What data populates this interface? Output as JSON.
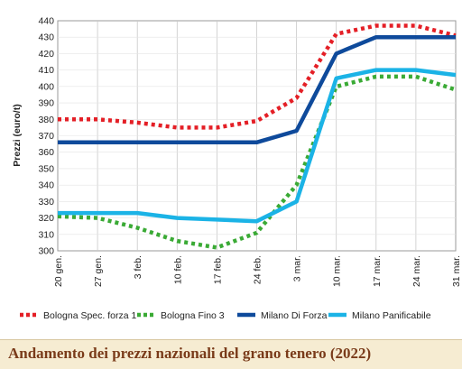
{
  "caption": "Andamento dei prezzi nazionali del grano tenero (2022)",
  "chart_data": {
    "type": "line",
    "title": "",
    "ylabel": "Prezzi (euro/t)",
    "xlabel": "",
    "categories": [
      "20 gen.",
      "27 gen.",
      "3 feb.",
      "10 feb.",
      "17 feb.",
      "24 feb.",
      "3 mar.",
      "10 mar.",
      "17 mar.",
      "24 mar.",
      "31 mar."
    ],
    "ylim": [
      300,
      440
    ],
    "yticks": [
      300,
      310,
      320,
      330,
      340,
      350,
      360,
      370,
      380,
      390,
      400,
      410,
      420,
      430,
      440
    ],
    "grid": true,
    "legend_position": "bottom",
    "series": [
      {
        "name": "Bologna Spec. forza 1",
        "color": "#e41f26",
        "style": "dotted",
        "values": [
          380,
          380,
          378,
          375,
          375,
          379,
          393,
          432,
          437,
          437,
          431
        ]
      },
      {
        "name": "Bologna Fino 3",
        "color": "#3aaa35",
        "style": "dotted",
        "values": [
          321,
          320,
          314,
          306,
          302,
          311,
          340,
          400,
          406,
          406,
          398
        ]
      },
      {
        "name": "Milano Di Forza",
        "color": "#0e4a9b",
        "style": "solid",
        "values": [
          366,
          366,
          366,
          366,
          366,
          366,
          373,
          420,
          430,
          430,
          430
        ]
      },
      {
        "name": "Milano Panificabile",
        "color": "#1bb3e6",
        "style": "solid",
        "values": [
          323,
          323,
          323,
          320,
          319,
          318,
          330,
          405,
          410,
          410,
          407
        ]
      }
    ]
  }
}
